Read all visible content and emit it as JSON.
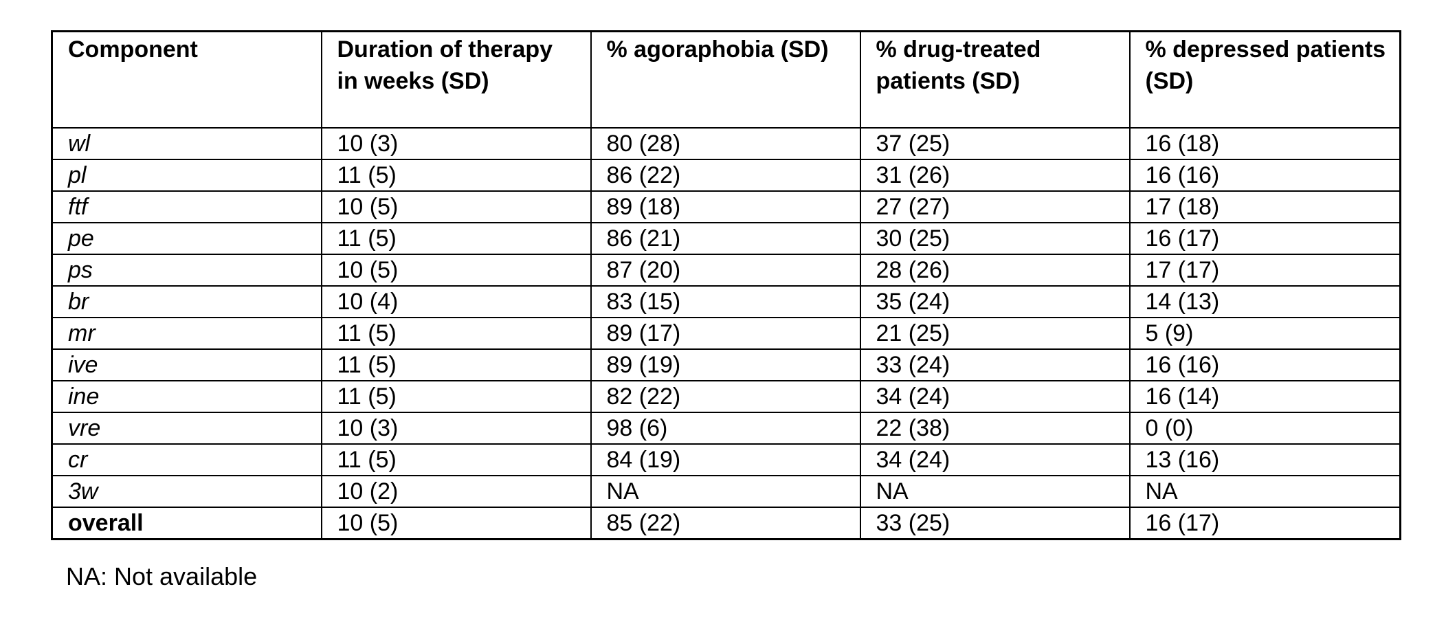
{
  "table": {
    "headers": [
      "Component",
      "Duration of therapy in weeks (SD)",
      "% agoraphobia (SD)",
      "% drug-treated patients (SD)",
      "% depressed patients (SD)"
    ],
    "rows": [
      {
        "component": "wl",
        "duration": "10 (3)",
        "agoraphobia": "80 (28)",
        "drug_treated": "37 (25)",
        "depressed": "16 (18)"
      },
      {
        "component": "pl",
        "duration": "11 (5)",
        "agoraphobia": "86 (22)",
        "drug_treated": "31 (26)",
        "depressed": "16 (16)"
      },
      {
        "component": "ftf",
        "duration": "10 (5)",
        "agoraphobia": "89 (18)",
        "drug_treated": "27 (27)",
        "depressed": "17 (18)"
      },
      {
        "component": "pe",
        "duration": "11 (5)",
        "agoraphobia": "86 (21)",
        "drug_treated": "30 (25)",
        "depressed": "16 (17)"
      },
      {
        "component": "ps",
        "duration": "10 (5)",
        "agoraphobia": "87 (20)",
        "drug_treated": "28 (26)",
        "depressed": "17 (17)"
      },
      {
        "component": "br",
        "duration": "10 (4)",
        "agoraphobia": "83 (15)",
        "drug_treated": "35 (24)",
        "depressed": "14 (13)"
      },
      {
        "component": "mr",
        "duration": "11 (5)",
        "agoraphobia": "89 (17)",
        "drug_treated": "21 (25)",
        "depressed": "5 (9)"
      },
      {
        "component": "ive",
        "duration": "11 (5)",
        "agoraphobia": "89 (19)",
        "drug_treated": "33 (24)",
        "depressed": "16 (16)"
      },
      {
        "component": "ine",
        "duration": "11 (5)",
        "agoraphobia": "82 (22)",
        "drug_treated": "34 (24)",
        "depressed": "16 (14)"
      },
      {
        "component": "vre",
        "duration": "10 (3)",
        "agoraphobia": "98 (6)",
        "drug_treated": "22 (38)",
        "depressed": "0 (0)"
      },
      {
        "component": "cr",
        "duration": "11 (5)",
        "agoraphobia": "84 (19)",
        "drug_treated": "34 (24)",
        "depressed": "13 (16)"
      },
      {
        "component": "3w",
        "duration": "10 (2)",
        "agoraphobia": "NA",
        "drug_treated": "NA",
        "depressed": "NA"
      },
      {
        "component": "overall",
        "duration": "10 (5)",
        "agoraphobia": "85 (22)",
        "drug_treated": "33 (25)",
        "depressed": "16 (17)"
      }
    ]
  },
  "footnote": "NA: Not available"
}
